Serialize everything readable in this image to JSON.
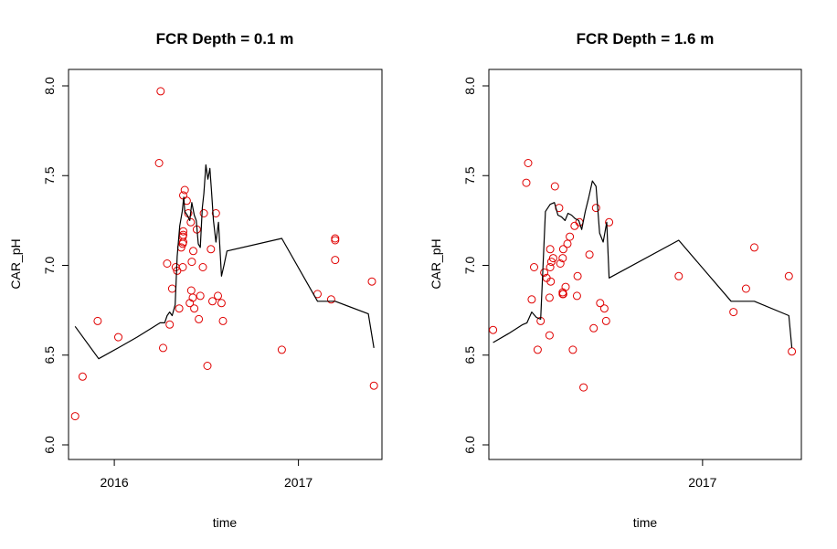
{
  "chart_data": [
    {
      "type": "scatter",
      "title": "FCR Depth = 0.1 m",
      "xlabel": "time",
      "ylabel": "CAR_pH",
      "xlim": [
        "2015-10-02",
        "2017-06-16"
      ],
      "ylim": [
        6.0,
        8.0
      ],
      "yticks": [
        6.0,
        6.5,
        7.0,
        7.5,
        8.0
      ],
      "ytick_labels": [
        "6.0",
        "6.5",
        "7.0",
        "7.5",
        "8.0"
      ],
      "xticks": [
        {
          "date": "2016-01-01",
          "label": "2016"
        },
        {
          "date": "2017-01-01",
          "label": "2017"
        }
      ],
      "series": [
        {
          "kind": "points",
          "color": "#e00000",
          "x": [
            "2015-10-15",
            "2015-10-30",
            "2015-11-29",
            "2016-01-09",
            "2016-03-30",
            "2016-04-02",
            "2016-04-07",
            "2016-04-15",
            "2016-04-20",
            "2016-04-25",
            "2016-05-02",
            "2016-05-05",
            "2016-05-09",
            "2016-05-13",
            "2016-05-16",
            "2016-05-16",
            "2016-05-16",
            "2016-05-17",
            "2016-05-17",
            "2016-05-17",
            "2016-05-17",
            "2016-05-20",
            "2016-05-24",
            "2016-05-27",
            "2016-05-30",
            "2016-06-01",
            "2016-06-02",
            "2016-06-03",
            "2016-06-05",
            "2016-06-06",
            "2016-06-08",
            "2016-06-13",
            "2016-06-17",
            "2016-06-20",
            "2016-06-25",
            "2016-06-27",
            "2016-07-04",
            "2016-07-11",
            "2016-07-14",
            "2016-07-21",
            "2016-07-25",
            "2016-08-01",
            "2016-08-04",
            "2016-11-29",
            "2017-02-08",
            "2017-03-07",
            "2017-03-15",
            "2017-03-15",
            "2017-03-15",
            "2017-05-27",
            "2017-05-31"
          ],
          "y": [
            6.16,
            6.38,
            6.69,
            6.6,
            7.57,
            7.97,
            6.54,
            7.01,
            6.67,
            6.87,
            6.99,
            6.97,
            6.76,
            7.1,
            6.99,
            7.12,
            7.16,
            7.17,
            7.19,
            7.13,
            7.39,
            7.42,
            7.36,
            7.29,
            6.79,
            7.24,
            6.86,
            7.02,
            6.82,
            7.08,
            6.76,
            7.2,
            6.7,
            6.83,
            6.99,
            7.29,
            6.44,
            7.09,
            6.8,
            7.29,
            6.83,
            6.79,
            6.69,
            6.53,
            6.84,
            6.81,
            7.03,
            7.14,
            7.15,
            6.91,
            6.33
          ]
        },
        {
          "kind": "line",
          "color": "#000000",
          "x": [
            "2015-10-15",
            "2015-12-01",
            "2016-01-15",
            "2016-02-15",
            "2016-03-15",
            "2016-04-01",
            "2016-04-10",
            "2016-04-15",
            "2016-04-20",
            "2016-04-25",
            "2016-05-01",
            "2016-05-05",
            "2016-05-10",
            "2016-05-15",
            "2016-05-18",
            "2016-05-20",
            "2016-05-25",
            "2016-05-30",
            "2016-06-03",
            "2016-06-08",
            "2016-06-12",
            "2016-06-16",
            "2016-06-20",
            "2016-06-24",
            "2016-06-27",
            "2016-07-01",
            "2016-07-05",
            "2016-07-09",
            "2016-07-12",
            "2016-07-16",
            "2016-07-21",
            "2016-07-26",
            "2016-08-01",
            "2016-08-06",
            "2016-08-12",
            "2016-11-29",
            "2017-02-08",
            "2017-03-15",
            "2017-05-20",
            "2017-05-31"
          ],
          "y": [
            6.66,
            6.48,
            6.55,
            6.6,
            6.65,
            6.68,
            6.68,
            6.72,
            6.74,
            6.72,
            6.78,
            7.05,
            7.22,
            7.3,
            7.38,
            7.3,
            7.28,
            7.25,
            7.35,
            7.28,
            7.25,
            7.12,
            7.1,
            7.32,
            7.4,
            7.56,
            7.48,
            7.54,
            7.42,
            7.25,
            7.13,
            7.24,
            6.94,
            7.0,
            7.08,
            7.15,
            6.8,
            6.8,
            6.73,
            6.54
          ]
        }
      ]
    },
    {
      "type": "scatter",
      "title": "FCR Depth = 1.6 m",
      "xlabel": "time",
      "ylabel": "CAR_pH",
      "xlim": [
        "2016-01-08",
        "2017-06-16"
      ],
      "ylim": [
        6.0,
        8.0
      ],
      "yticks": [
        6.0,
        6.5,
        7.0,
        7.5,
        8.0
      ],
      "ytick_labels": [
        "6.0",
        "6.5",
        "7.0",
        "7.5",
        "8.0"
      ],
      "xticks": [
        {
          "date": "2017-01-01",
          "label": "2017"
        }
      ],
      "series": [
        {
          "kind": "points",
          "color": "#e00000",
          "x": [
            "2016-01-15",
            "2016-03-11",
            "2016-03-14",
            "2016-03-20",
            "2016-03-24",
            "2016-03-30",
            "2016-04-04",
            "2016-04-10",
            "2016-04-14",
            "2016-04-19",
            "2016-04-19",
            "2016-04-20",
            "2016-04-20",
            "2016-04-21",
            "2016-04-22",
            "2016-04-25",
            "2016-04-28",
            "2016-05-05",
            "2016-05-07",
            "2016-05-11",
            "2016-05-11",
            "2016-05-11",
            "2016-05-12",
            "2016-05-12",
            "2016-05-16",
            "2016-05-19",
            "2016-05-23",
            "2016-05-28",
            "2016-05-31",
            "2016-06-04",
            "2016-06-05",
            "2016-06-08",
            "2016-06-15",
            "2016-06-25",
            "2016-07-02",
            "2016-07-06",
            "2016-07-13",
            "2016-07-20",
            "2016-07-23",
            "2016-07-28",
            "2016-11-22",
            "2017-02-22",
            "2017-03-15",
            "2017-03-29",
            "2017-05-26",
            "2017-05-31"
          ],
          "y": [
            6.64,
            7.46,
            7.57,
            6.81,
            6.99,
            6.53,
            6.69,
            6.96,
            6.93,
            6.82,
            6.61,
            7.09,
            6.99,
            6.91,
            7.02,
            7.04,
            7.44,
            7.32,
            7.01,
            6.85,
            6.84,
            7.04,
            6.84,
            7.09,
            6.88,
            7.12,
            7.16,
            6.53,
            7.22,
            6.83,
            6.94,
            7.24,
            6.32,
            7.06,
            6.65,
            7.32,
            6.79,
            6.76,
            6.69,
            7.24,
            6.94,
            6.74,
            6.87,
            7.1,
            6.94,
            6.52
          ]
        },
        {
          "kind": "line",
          "color": "#000000",
          "x": [
            "2016-01-15",
            "2016-02-10",
            "2016-03-05",
            "2016-03-12",
            "2016-03-20",
            "2016-03-28",
            "2016-04-04",
            "2016-04-12",
            "2016-04-20",
            "2016-04-27",
            "2016-05-03",
            "2016-05-09",
            "2016-05-15",
            "2016-05-20",
            "2016-05-26",
            "2016-06-01",
            "2016-06-07",
            "2016-06-12",
            "2016-06-18",
            "2016-06-24",
            "2016-06-30",
            "2016-07-06",
            "2016-07-12",
            "2016-07-18",
            "2016-07-24",
            "2016-07-28",
            "2016-11-22",
            "2017-02-18",
            "2017-03-29",
            "2017-05-26",
            "2017-05-31"
          ],
          "y": [
            6.57,
            6.62,
            6.67,
            6.68,
            6.74,
            6.71,
            6.7,
            7.3,
            7.34,
            7.35,
            7.28,
            7.27,
            7.25,
            7.29,
            7.28,
            7.26,
            7.25,
            7.2,
            7.3,
            7.38,
            7.47,
            7.44,
            7.18,
            7.13,
            7.24,
            6.93,
            7.14,
            6.8,
            6.8,
            6.72,
            6.54
          ]
        }
      ]
    }
  ]
}
